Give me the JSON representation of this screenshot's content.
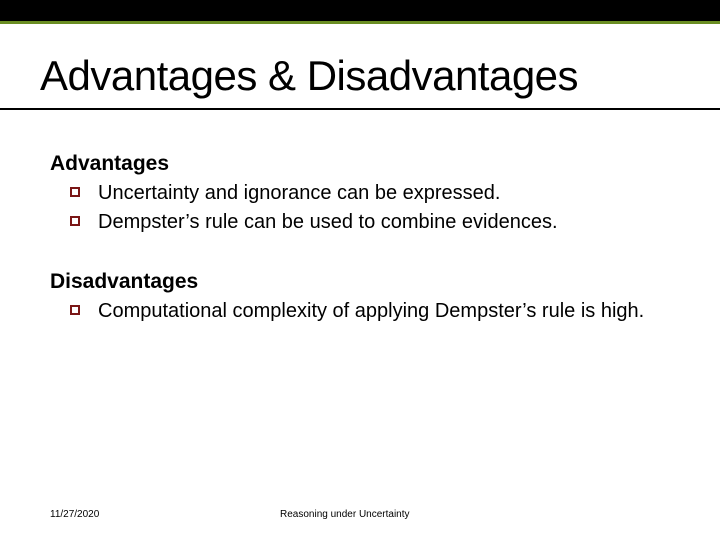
{
  "slide": {
    "title_main": "Advantages",
    "title_amp": "&",
    "title_rest": "Disadvantages",
    "sections": [
      {
        "heading": "Advantages",
        "items": [
          "Uncertainty and ignorance can be expressed.",
          "Dempster’s rule can be used to combine evidences."
        ]
      },
      {
        "heading": "Disadvantages",
        "items": [
          "Computational complexity of applying Dempster’s rule is high."
        ]
      }
    ],
    "footer": {
      "date": "11/27/2020",
      "topic": "Reasoning under Uncertainty"
    }
  },
  "style": {
    "top_bar_bg": "#000000",
    "accent_line": "#6b8e23",
    "bullet_border": "#7a1616",
    "title_fontsize": 42,
    "heading_fontsize": 21,
    "body_fontsize": 20,
    "footer_fontsize": 10,
    "background": "#ffffff",
    "text_color": "#000000"
  }
}
